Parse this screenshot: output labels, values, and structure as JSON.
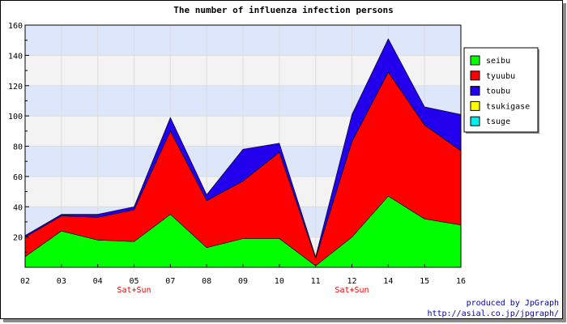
{
  "footer": {
    "line1": "produced by JpGraph",
    "line2": "http://asial.co.jp/jpgraph/"
  },
  "chart_data": {
    "type": "area",
    "stacked": true,
    "title": "The number of influenza infection persons",
    "categories": [
      "02",
      "03",
      "04",
      "05",
      "07",
      "08",
      "09",
      "10",
      "11",
      "12",
      "14",
      "15",
      "16"
    ],
    "category_notes": [
      {
        "index": 3,
        "label": "Sat+Sun"
      },
      {
        "index": 9,
        "label": "Sat+Sun"
      }
    ],
    "ylim": [
      0,
      160
    ],
    "yticks": [
      20,
      40,
      60,
      80,
      100,
      120,
      140,
      160
    ],
    "grid": true,
    "band_colors": [
      "#dde6fb",
      "#f3f3f3"
    ],
    "legend_position": "right",
    "series": [
      {
        "name": "seibu",
        "color": "#00ff00",
        "values": [
          7,
          24,
          18,
          17,
          35,
          13,
          19,
          19,
          1,
          20,
          47,
          32,
          28
        ]
      },
      {
        "name": "tyuubu",
        "color": "#ff0000",
        "values": [
          13,
          10,
          15,
          21,
          55,
          31,
          38,
          57,
          5,
          63,
          82,
          62,
          49
        ]
      },
      {
        "name": "toubu",
        "color": "#2200ee",
        "values": [
          1,
          1,
          2,
          2,
          9,
          4,
          21,
          6,
          1,
          18,
          22,
          12,
          24
        ]
      },
      {
        "name": "tsukigase",
        "color": "#ffff00",
        "values": [
          0,
          0,
          0,
          0,
          0,
          0,
          0,
          0,
          0,
          0,
          0,
          0,
          0
        ]
      },
      {
        "name": "tsuge",
        "color": "#00eeee",
        "values": [
          0,
          0,
          0,
          0,
          0,
          0,
          0,
          0,
          0,
          0,
          0,
          0,
          0
        ]
      }
    ]
  }
}
